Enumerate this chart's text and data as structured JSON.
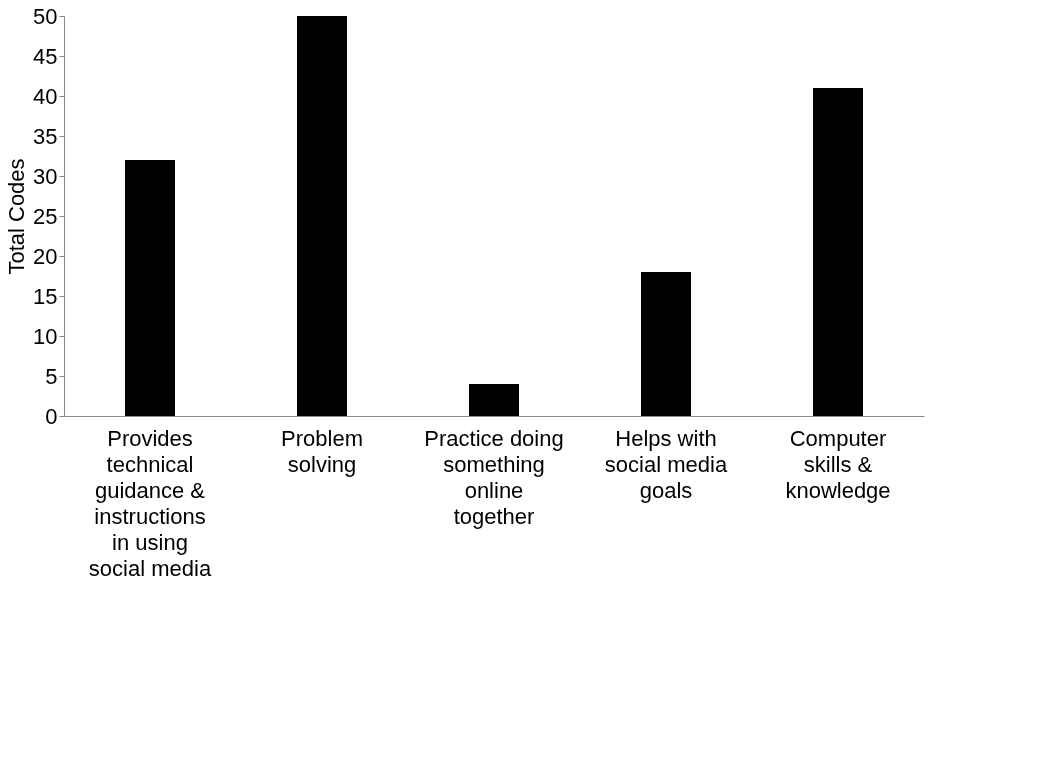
{
  "chart_data": {
    "type": "bar",
    "ylabel": "Total Codes",
    "categories": [
      "Provides technical guidance & instructions in using social media",
      "Problem solving",
      "Practice doing something online together",
      "Helps with social media goals",
      "Computer skills & knowledge"
    ],
    "values": [
      32,
      50,
      4,
      18,
      41
    ],
    "color": "#000000",
    "ylim": [
      0,
      50
    ],
    "yticks": [
      0,
      5,
      10,
      15,
      20,
      25,
      30,
      35,
      40,
      45,
      50
    ],
    "grid": false
  }
}
